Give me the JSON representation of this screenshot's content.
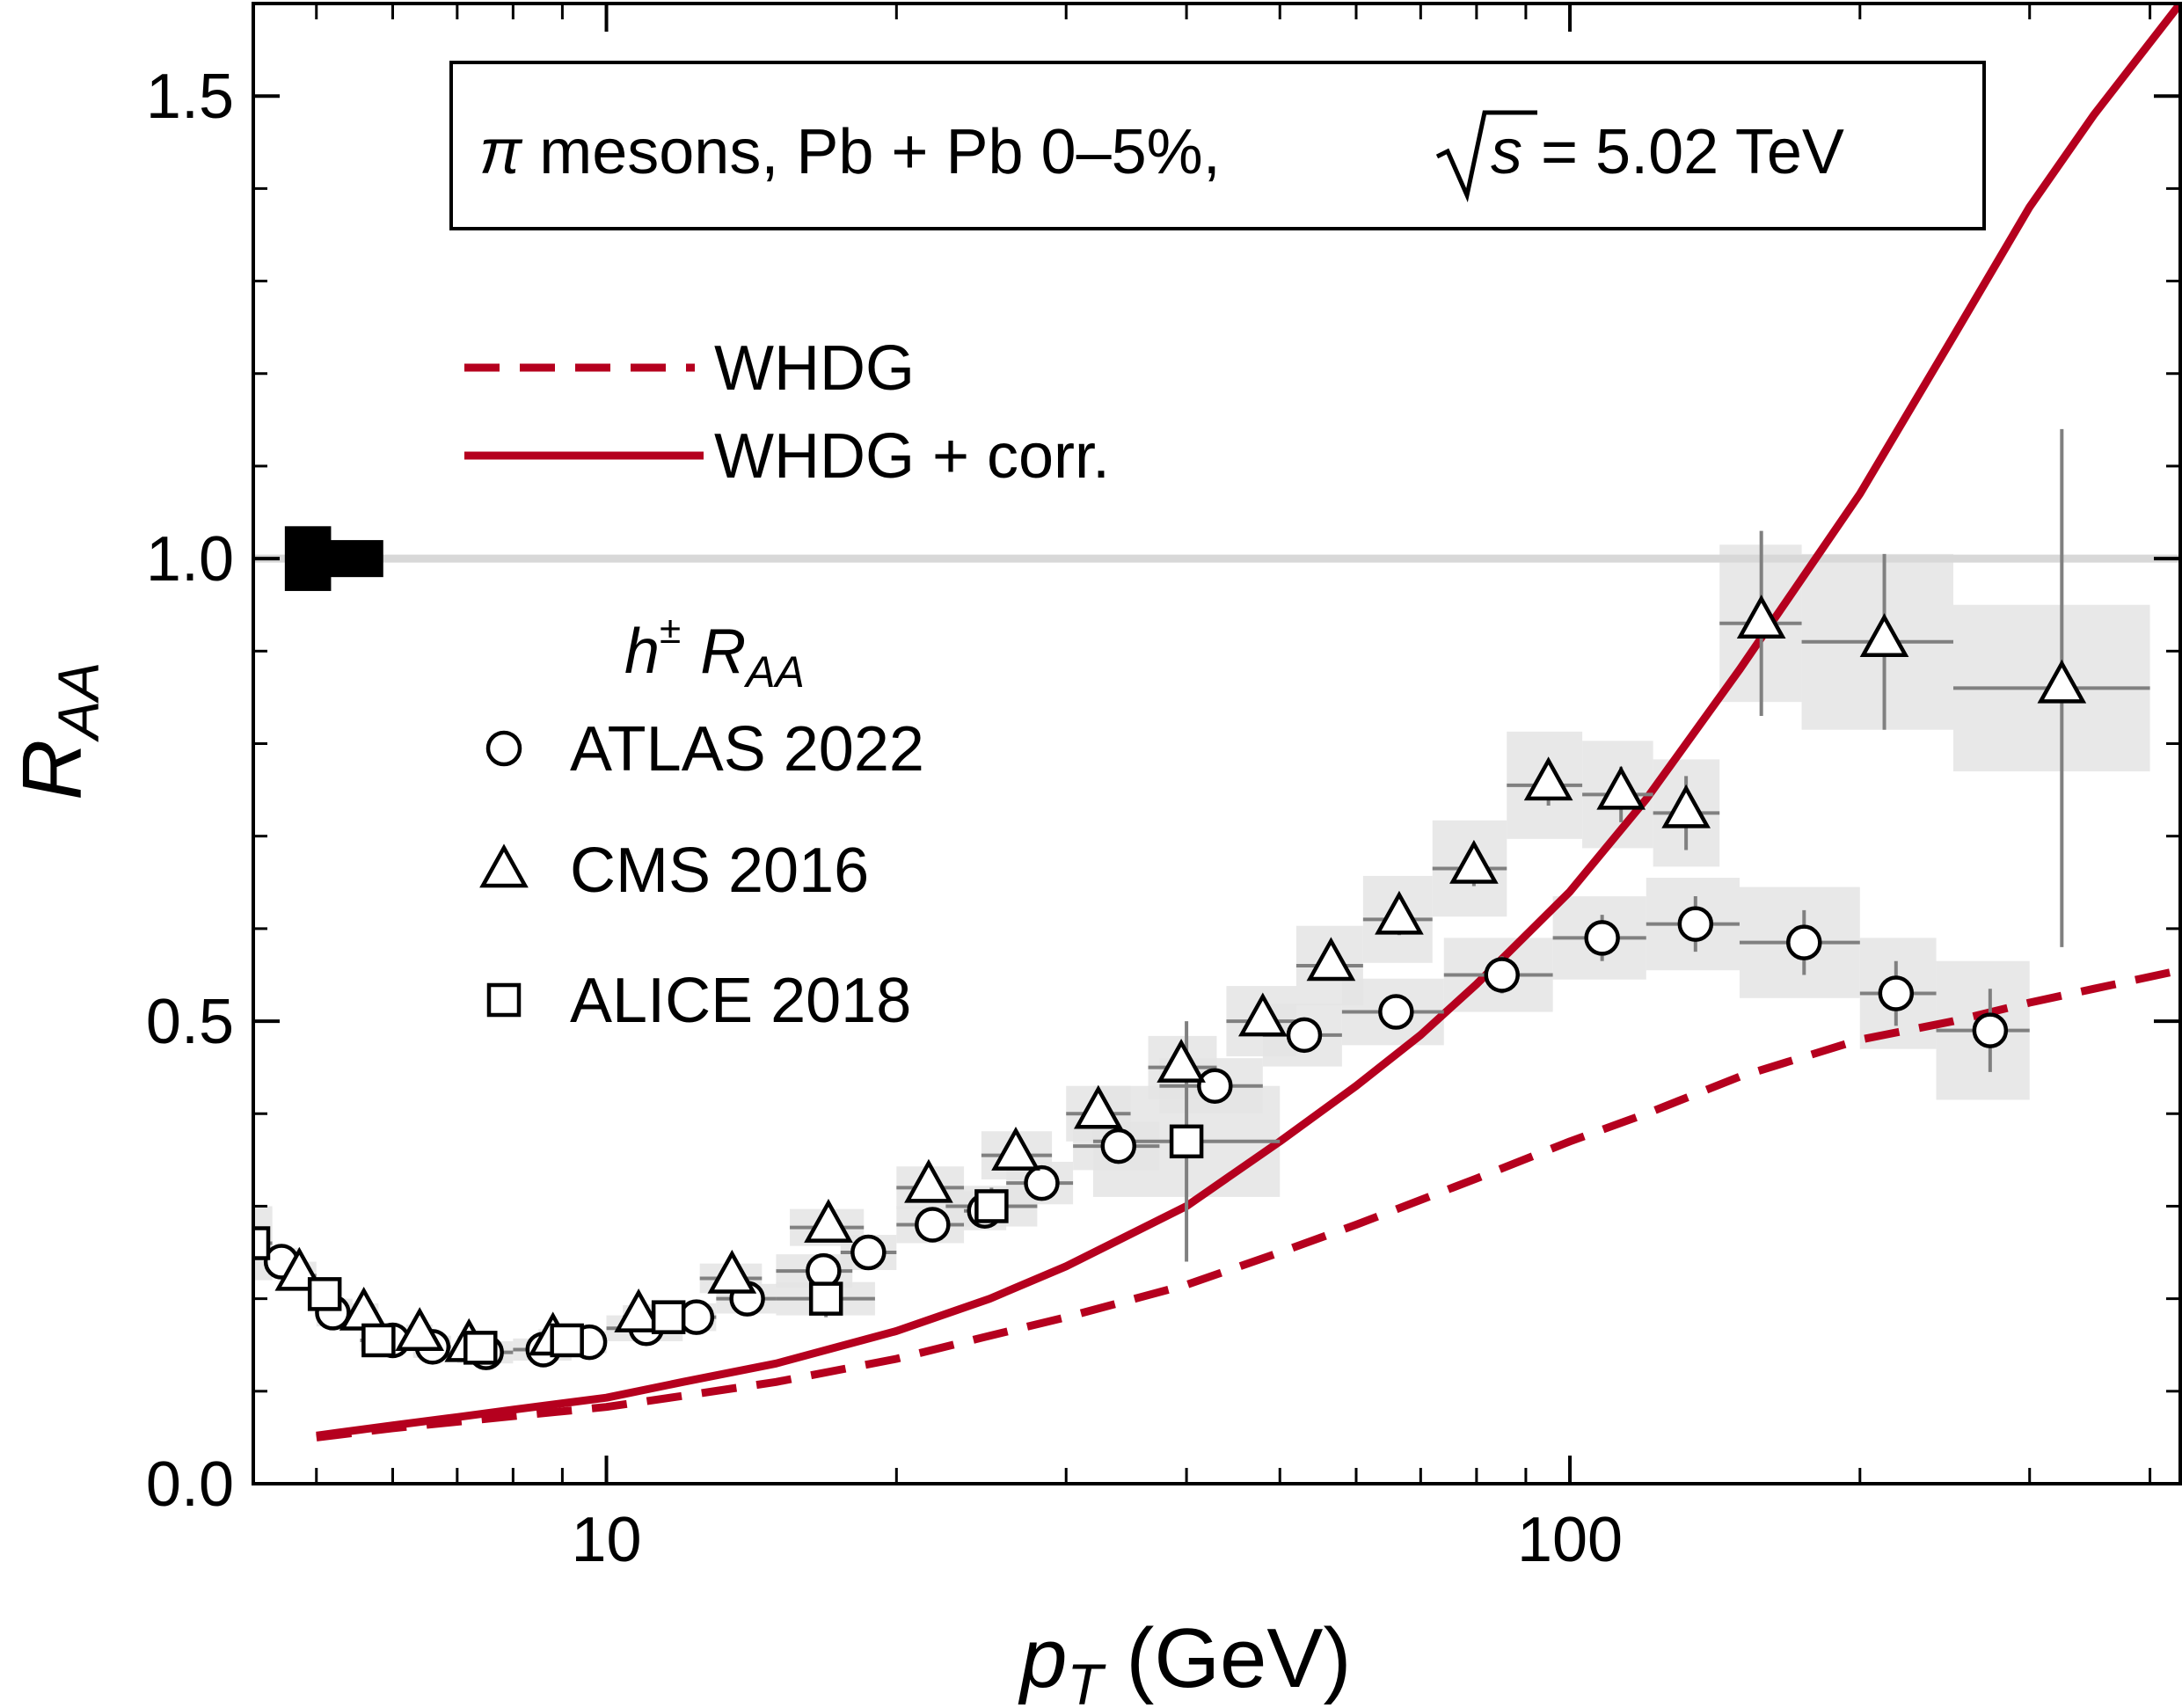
{
  "chart_data": {
    "type": "scatter",
    "title": "π mesons, Pb + Pb 0–5%, √s = 5.02 TeV",
    "title_parts": {
      "particle": "π",
      "text": " mesons, Pb + Pb 0–5%, ",
      "sqrt_var": "s",
      "energy": " = 5.02 TeV"
    },
    "xlabel": {
      "var": "p",
      "sub": "T",
      "unit": " (GeV)"
    },
    "ylabel": {
      "var": "R",
      "sub": "AA"
    },
    "x_scale": "log",
    "xlim": [
      4.3,
      430
    ],
    "ylim": [
      0.0,
      1.6
    ],
    "x_ticks": [
      10,
      100
    ],
    "x_tick_labels": [
      "10",
      "100"
    ],
    "y_ticks": [
      0.0,
      0.5,
      1.0,
      1.5
    ],
    "y_tick_labels": [
      "0.0",
      "0.5",
      "1.0",
      "1.5"
    ],
    "reference_line": 1.0,
    "normalization_boxes": [
      {
        "x": 4.9,
        "low": 0.965,
        "high": 1.035,
        "half_width_factor": 0.03
      },
      {
        "x": 5.5,
        "low": 0.98,
        "high": 1.02,
        "half_width_factor": 0.035
      }
    ],
    "data_legend_title": {
      "var": "h",
      "sup": "±",
      "rvar": "R",
      "rsub": "AA"
    },
    "series": [
      {
        "name": "WHDG",
        "kind": "curve",
        "style": "dashed",
        "color": "#b5001e",
        "x": [
          5.0,
          6.0,
          7.0,
          8.0,
          10.0,
          12.0,
          15.0,
          20.0,
          25.0,
          30.0,
          40.0,
          50.0,
          60.0,
          80.0,
          100.0,
          120.0,
          150.0,
          200.0,
          250.0,
          300.0,
          350.0,
          430.0
        ],
        "y": [
          0.05,
          0.06,
          0.067,
          0.073,
          0.083,
          0.095,
          0.11,
          0.135,
          0.16,
          0.18,
          0.215,
          0.25,
          0.28,
          0.33,
          0.37,
          0.4,
          0.44,
          0.48,
          0.5,
          0.52,
          0.535,
          0.555
        ]
      },
      {
        "name": "WHDG + corr.",
        "kind": "curve",
        "style": "solid",
        "color": "#b5001e",
        "x": [
          5.0,
          6.0,
          7.0,
          8.0,
          10.0,
          12.0,
          15.0,
          20.0,
          25.0,
          30.0,
          40.0,
          50.0,
          60.0,
          70.0,
          80.0,
          100.0,
          120.0,
          150.0,
          200.0,
          250.0,
          300.0,
          350.0,
          430.0
        ],
        "y": [
          0.052,
          0.063,
          0.072,
          0.08,
          0.093,
          0.11,
          0.13,
          0.165,
          0.2,
          0.235,
          0.3,
          0.37,
          0.43,
          0.485,
          0.54,
          0.64,
          0.74,
          0.88,
          1.07,
          1.24,
          1.38,
          1.48,
          1.6
        ]
      },
      {
        "name": "ATLAS 2022",
        "kind": "points",
        "marker": "circle",
        "points": [
          {
            "x": 4.6,
            "y": 0.24,
            "xlo": 4.45,
            "xhi": 4.8,
            "ey": 0.01,
            "syst": 0.015
          },
          {
            "x": 5.2,
            "y": 0.185,
            "xlo": 5.0,
            "xhi": 5.45,
            "ey": 0.005,
            "syst": 0.015
          },
          {
            "x": 6.0,
            "y": 0.155,
            "xlo": 5.7,
            "xhi": 6.3,
            "ey": 0.005,
            "syst": 0.012
          },
          {
            "x": 6.6,
            "y": 0.148,
            "xlo": 6.3,
            "xhi": 6.9,
            "ey": 0.005,
            "syst": 0.012
          },
          {
            "x": 7.5,
            "y": 0.142,
            "xlo": 7.0,
            "xhi": 8.0,
            "ey": 0.005,
            "syst": 0.012
          },
          {
            "x": 8.6,
            "y": 0.145,
            "xlo": 8.0,
            "xhi": 9.2,
            "ey": 0.005,
            "syst": 0.012
          },
          {
            "x": 9.6,
            "y": 0.153,
            "xlo": 9.2,
            "xhi": 10.0,
            "ey": 0.005,
            "syst": 0.012
          },
          {
            "x": 11.0,
            "y": 0.168,
            "xlo": 10.0,
            "xhi": 12.0,
            "ey": 0.006,
            "syst": 0.014
          },
          {
            "x": 12.4,
            "y": 0.18,
            "xlo": 12.0,
            "xhi": 13.0,
            "ey": 0.006,
            "syst": 0.015
          },
          {
            "x": 14.0,
            "y": 0.2,
            "xlo": 13.0,
            "xhi": 15.0,
            "ey": 0.006,
            "syst": 0.016
          },
          {
            "x": 16.8,
            "y": 0.23,
            "xlo": 15.0,
            "xhi": 18.0,
            "ey": 0.007,
            "syst": 0.018
          },
          {
            "x": 18.7,
            "y": 0.25,
            "xlo": 17.5,
            "xhi": 20.0,
            "ey": 0.007,
            "syst": 0.019
          },
          {
            "x": 21.8,
            "y": 0.28,
            "xlo": 20.0,
            "xhi": 23.5,
            "ey": 0.008,
            "syst": 0.02
          },
          {
            "x": 24.7,
            "y": 0.295,
            "xlo": 23.5,
            "xhi": 26.0,
            "ey": 0.008,
            "syst": 0.021
          },
          {
            "x": 28.3,
            "y": 0.325,
            "xlo": 26.0,
            "xhi": 30.5,
            "ey": 0.008,
            "syst": 0.023
          },
          {
            "x": 34.0,
            "y": 0.365,
            "xlo": 30.5,
            "xhi": 37.5,
            "ey": 0.01,
            "syst": 0.026
          },
          {
            "x": 42.8,
            "y": 0.43,
            "xlo": 37.5,
            "xhi": 48.0,
            "ey": 0.012,
            "syst": 0.03
          },
          {
            "x": 53.0,
            "y": 0.485,
            "xlo": 48.0,
            "xhi": 58.0,
            "ey": 0.014,
            "syst": 0.034
          },
          {
            "x": 66.0,
            "y": 0.51,
            "xlo": 58.0,
            "xhi": 74.0,
            "ey": 0.016,
            "syst": 0.036
          },
          {
            "x": 85.0,
            "y": 0.55,
            "xlo": 74.0,
            "xhi": 96.0,
            "ey": 0.02,
            "syst": 0.04
          },
          {
            "x": 108.0,
            "y": 0.59,
            "xlo": 96.0,
            "xhi": 120.0,
            "ey": 0.025,
            "syst": 0.045
          },
          {
            "x": 135.0,
            "y": 0.605,
            "xlo": 120.0,
            "xhi": 150.0,
            "ey": 0.03,
            "syst": 0.05
          },
          {
            "x": 175.0,
            "y": 0.585,
            "xlo": 150.0,
            "xhi": 200.0,
            "ey": 0.035,
            "syst": 0.06
          },
          {
            "x": 218.0,
            "y": 0.53,
            "xlo": 200.0,
            "xhi": 240.0,
            "ey": 0.035,
            "syst": 0.06
          },
          {
            "x": 273.0,
            "y": 0.49,
            "xlo": 240.0,
            "xhi": 300.0,
            "ey": 0.045,
            "syst": 0.075
          }
        ]
      },
      {
        "name": "CMS 2016",
        "kind": "points",
        "marker": "triangle",
        "points": [
          {
            "x": 4.8,
            "y": 0.225,
            "xlo": 4.6,
            "xhi": 5.0,
            "ey": 0.005,
            "syst": 0.015
          },
          {
            "x": 5.6,
            "y": 0.182,
            "xlo": 5.4,
            "xhi": 5.8,
            "ey": 0.005,
            "syst": 0.013
          },
          {
            "x": 6.4,
            "y": 0.16,
            "xlo": 6.2,
            "xhi": 6.6,
            "ey": 0.005,
            "syst": 0.012
          },
          {
            "x": 7.2,
            "y": 0.148,
            "xlo": 7.0,
            "xhi": 7.4,
            "ey": 0.005,
            "syst": 0.012
          },
          {
            "x": 8.8,
            "y": 0.155,
            "xlo": 8.5,
            "xhi": 9.1,
            "ey": 0.005,
            "syst": 0.012
          },
          {
            "x": 10.8,
            "y": 0.18,
            "xlo": 10.4,
            "xhi": 11.2,
            "ey": 0.005,
            "syst": 0.013
          },
          {
            "x": 13.5,
            "y": 0.222,
            "xlo": 12.5,
            "xhi": 14.5,
            "ey": 0.006,
            "syst": 0.016
          },
          {
            "x": 17.0,
            "y": 0.277,
            "xlo": 15.5,
            "xhi": 18.5,
            "ey": 0.007,
            "syst": 0.02
          },
          {
            "x": 21.6,
            "y": 0.32,
            "xlo": 20.0,
            "xhi": 23.5,
            "ey": 0.008,
            "syst": 0.023
          },
          {
            "x": 26.6,
            "y": 0.355,
            "xlo": 24.5,
            "xhi": 29.0,
            "ey": 0.009,
            "syst": 0.026
          },
          {
            "x": 32.4,
            "y": 0.4,
            "xlo": 30.0,
            "xhi": 35.0,
            "ey": 0.01,
            "syst": 0.03
          },
          {
            "x": 39.5,
            "y": 0.45,
            "xlo": 36.5,
            "xhi": 43.0,
            "ey": 0.012,
            "syst": 0.034
          },
          {
            "x": 48.0,
            "y": 0.5,
            "xlo": 44.0,
            "xhi": 52.0,
            "ey": 0.013,
            "syst": 0.038
          },
          {
            "x": 56.5,
            "y": 0.56,
            "xlo": 52.0,
            "xhi": 61.0,
            "ey": 0.015,
            "syst": 0.043
          },
          {
            "x": 66.5,
            "y": 0.61,
            "xlo": 61.0,
            "xhi": 72.0,
            "ey": 0.017,
            "syst": 0.047
          },
          {
            "x": 79.5,
            "y": 0.665,
            "xlo": 72.0,
            "xhi": 86.0,
            "ey": 0.019,
            "syst": 0.052
          },
          {
            "x": 95.0,
            "y": 0.755,
            "xlo": 86.0,
            "xhi": 103.0,
            "ey": 0.022,
            "syst": 0.058
          },
          {
            "x": 113.0,
            "y": 0.745,
            "xlo": 103.0,
            "xhi": 122.0,
            "ey": 0.03,
            "syst": 0.058
          },
          {
            "x": 132.0,
            "y": 0.725,
            "xlo": 122.0,
            "xhi": 143.0,
            "ey": 0.04,
            "syst": 0.058
          },
          {
            "x": 158.0,
            "y": 0.93,
            "xlo": 143.0,
            "xhi": 174.0,
            "ey": 0.1,
            "syst": 0.085
          },
          {
            "x": 212.0,
            "y": 0.91,
            "xlo": 174.0,
            "xhi": 250.0,
            "ey": 0.095,
            "syst": 0.095
          },
          {
            "x": 324.0,
            "y": 0.86,
            "xlo": 250.0,
            "xhi": 400.0,
            "ey": 0.28,
            "syst": 0.09
          }
        ]
      },
      {
        "name": "ALICE 2018",
        "kind": "points",
        "marker": "square",
        "points": [
          {
            "x": 4.3,
            "y": 0.26,
            "xlo": 4.15,
            "xhi": 4.5,
            "ey": 0.005,
            "syst": 0.04
          },
          {
            "x": 5.1,
            "y": 0.205,
            "xlo": 4.9,
            "xhi": 5.3,
            "ey": 0.005,
            "syst": 0.018
          },
          {
            "x": 5.8,
            "y": 0.155,
            "xlo": 5.55,
            "xhi": 6.05,
            "ey": 0.005,
            "syst": 0.012
          },
          {
            "x": 7.4,
            "y": 0.147,
            "xlo": 7.1,
            "xhi": 7.7,
            "ey": 0.005,
            "syst": 0.012
          },
          {
            "x": 9.1,
            "y": 0.155,
            "xlo": 8.6,
            "xhi": 9.6,
            "ey": 0.006,
            "syst": 0.012
          },
          {
            "x": 11.6,
            "y": 0.18,
            "xlo": 11.0,
            "xhi": 12.2,
            "ey": 0.006,
            "syst": 0.014
          },
          {
            "x": 16.9,
            "y": 0.2,
            "xlo": 15.0,
            "xhi": 19.0,
            "ey": 0.02,
            "syst": 0.018
          },
          {
            "x": 25.1,
            "y": 0.3,
            "xlo": 22.5,
            "xhi": 28.0,
            "ey": 0.02,
            "syst": 0.022
          },
          {
            "x": 40.0,
            "y": 0.37,
            "xlo": 32.0,
            "xhi": 50.0,
            "ey": 0.13,
            "syst": 0.06
          }
        ]
      }
    ],
    "legend_lines": [
      {
        "label": "WHDG",
        "style": "dashed"
      },
      {
        "label": "WHDG + corr.",
        "style": "solid"
      }
    ],
    "legend_markers": [
      {
        "label": "ATLAS 2022",
        "marker": "circle"
      },
      {
        "label": "CMS 2016",
        "marker": "triangle"
      },
      {
        "label": "ALICE 2018",
        "marker": "square"
      }
    ]
  }
}
